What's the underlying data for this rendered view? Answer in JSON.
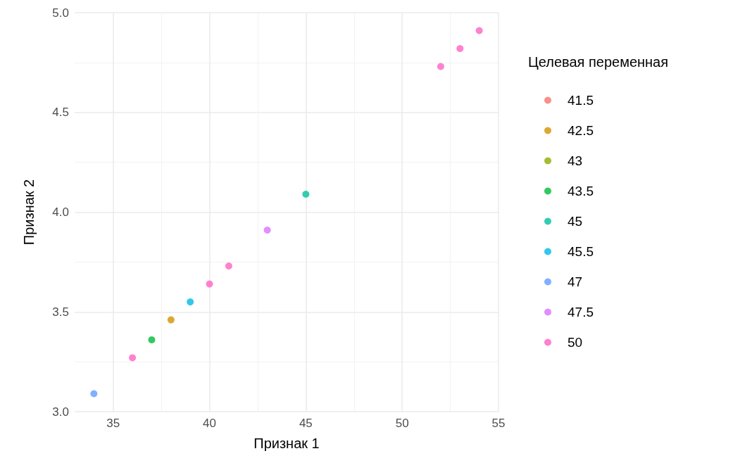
{
  "chart_data": {
    "type": "scatter",
    "xlabel": "Признак 1",
    "ylabel": "Признак 2",
    "legend_title": "Целевая переменная",
    "legend": "right",
    "grid": true,
    "marker": "circle",
    "xlim": [
      33,
      55
    ],
    "xticks": [
      35,
      40,
      45,
      50,
      55
    ],
    "ylim": [
      3.0,
      5.0
    ],
    "yticks": [
      {
        "value": 3.0,
        "label": "3.0"
      },
      3.5,
      {
        "value": 4.0,
        "label": "4.0"
      },
      4.5,
      {
        "value": 5.0,
        "label": "5.0"
      }
    ],
    "series": [
      {
        "name": "41.5",
        "color": "#f8766d"
      },
      {
        "name": "42.5",
        "color": "#d39200",
        "x": [
          38
        ],
        "values": [
          3.46
        ]
      },
      {
        "name": "43",
        "color": "#93aa00"
      },
      {
        "name": "43.5",
        "color": "#00ba38",
        "x": [
          37
        ],
        "values": [
          3.36
        ]
      },
      {
        "name": "45",
        "color": "#00c19f",
        "x": [
          45
        ],
        "values": [
          4.09
        ]
      },
      {
        "name": "45.5",
        "color": "#00b9e3",
        "x": [
          39
        ],
        "values": [
          3.55
        ]
      },
      {
        "name": "47",
        "color": "#619cff",
        "x": [
          34
        ],
        "values": [
          3.09
        ]
      },
      {
        "name": "47.5",
        "color": "#db72fb",
        "x": [
          43
        ],
        "values": [
          3.91
        ]
      },
      {
        "name": "50",
        "color": "#ff61c3",
        "x": [
          36,
          40,
          41,
          52,
          53,
          54
        ],
        "values": [
          3.27,
          3.64,
          3.73,
          4.73,
          4.82,
          4.91
        ]
      }
    ]
  }
}
